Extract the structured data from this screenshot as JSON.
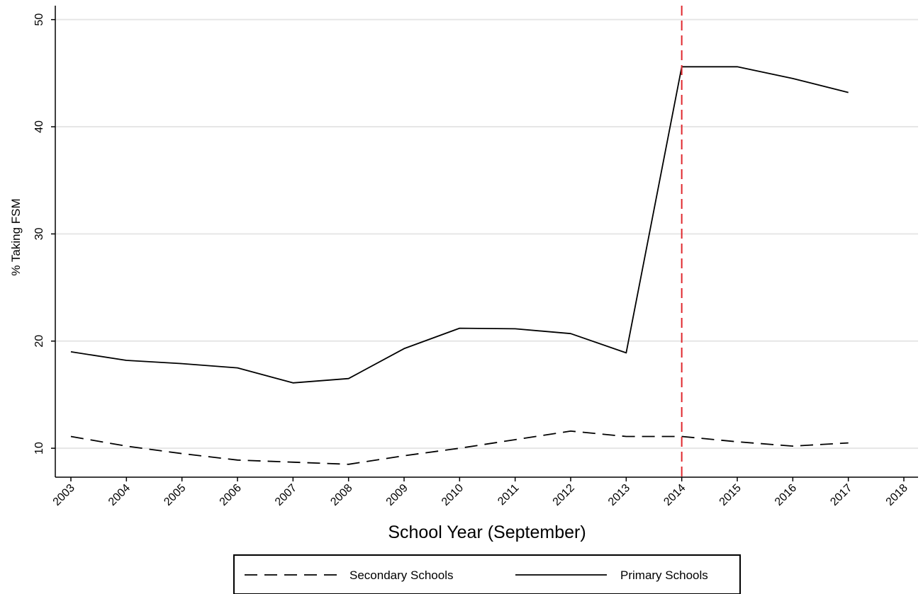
{
  "chart_data": {
    "type": "line",
    "title": "",
    "xlabel": "School Year (September)",
    "ylabel": "% Taking FSM",
    "x": [
      2003,
      2004,
      2005,
      2006,
      2007,
      2008,
      2009,
      2010,
      2011,
      2012,
      2013,
      2014,
      2015,
      2016,
      2017
    ],
    "xticks": [
      "2003",
      "2004",
      "2005",
      "2006",
      "2007",
      "2008",
      "2009",
      "2010",
      "2011",
      "2012",
      "2013",
      "2014",
      "2015",
      "2016",
      "2017",
      "2018"
    ],
    "yticks": [
      "10",
      "20",
      "30",
      "40",
      "50"
    ],
    "xlim": [
      2003,
      2018
    ],
    "ylim": [
      7.3,
      51.3
    ],
    "grid": true,
    "series": [
      {
        "name": "Secondary Schools",
        "style": "dashed",
        "color": "#000000",
        "values": [
          11.1,
          10.2,
          9.5,
          8.9,
          8.7,
          8.5,
          9.3,
          10.0,
          10.8,
          11.6,
          11.1,
          11.1,
          10.6,
          10.2,
          10.5
        ]
      },
      {
        "name": "Primary Schools",
        "style": "solid",
        "color": "#000000",
        "values": [
          19.0,
          18.2,
          17.9,
          17.5,
          16.1,
          16.5,
          19.3,
          21.2,
          21.15,
          20.7,
          18.9,
          45.6,
          45.6,
          44.5,
          43.2
        ]
      }
    ],
    "annotations": [
      {
        "type": "vline",
        "x": 2014,
        "color": "#e0282e",
        "style": "dashed"
      }
    ],
    "legend": {
      "position": "bottom",
      "entries": [
        "Secondary Schools",
        "Primary Schools"
      ]
    }
  }
}
